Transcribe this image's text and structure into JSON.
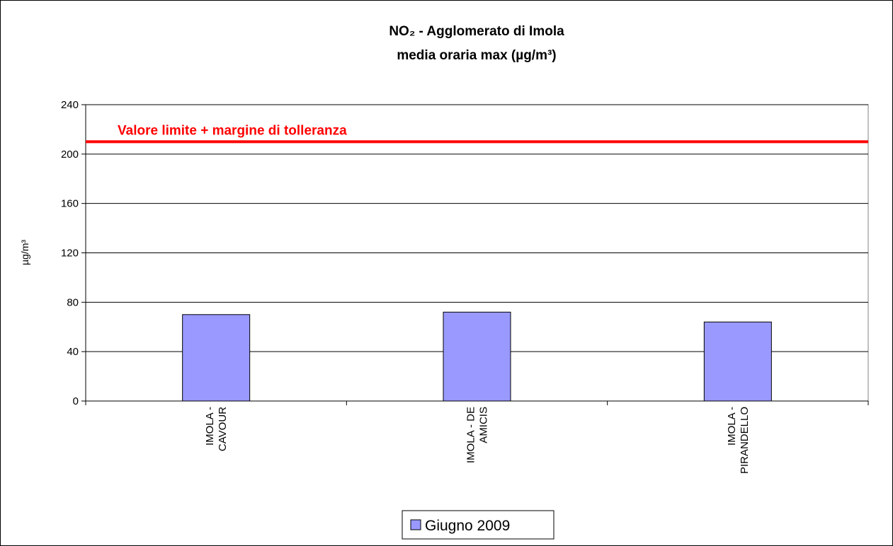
{
  "chart_data": {
    "type": "bar",
    "title": "NO₂ - Agglomerato di Imola",
    "subtitle": "media oraria max  (µg/m³)",
    "y_label": "µg/m³",
    "categories": [
      "IMOLA - CAVOUR",
      "IMOLA - DE AMICIS",
      "IMOLA - PIRANDELLO"
    ],
    "series": [
      {
        "name": "Giugno 2009",
        "color": "#9999ff",
        "values": [
          70,
          72,
          64
        ]
      }
    ],
    "ylim": [
      0,
      240
    ],
    "yticks": [
      0,
      40,
      80,
      120,
      160,
      200,
      240
    ],
    "grid": true,
    "reference_line": {
      "label": "Valore limite + margine di tolleranza",
      "value": 210,
      "color": "#ff0000"
    },
    "legend": "bottom"
  }
}
